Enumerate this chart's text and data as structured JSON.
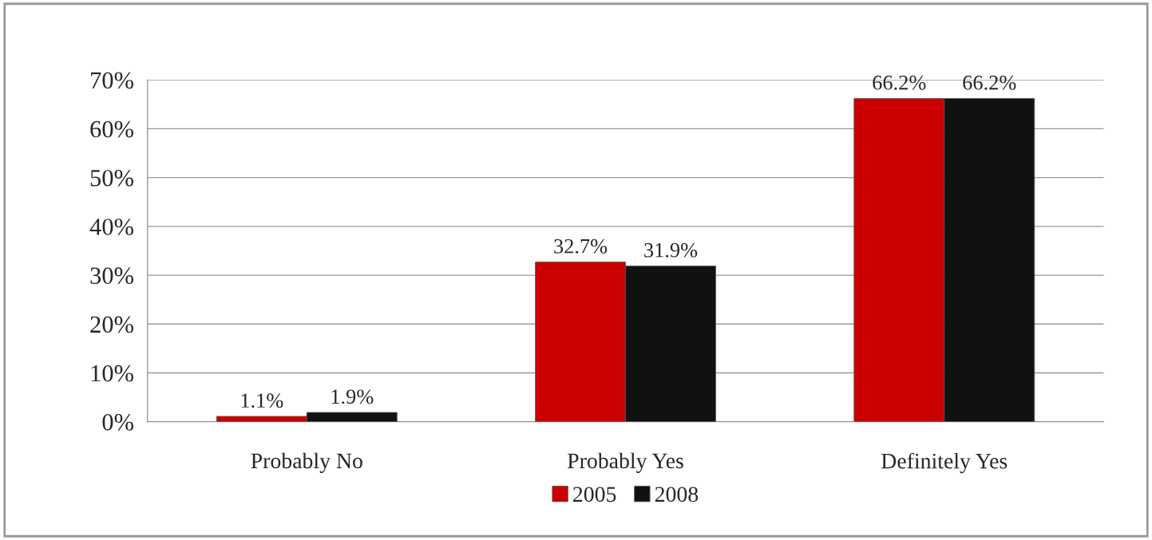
{
  "chart_data": {
    "type": "bar",
    "categories": [
      "Probably No",
      "Probably Yes",
      "Definitely Yes"
    ],
    "series": [
      {
        "name": "2005",
        "color": "#cc0000",
        "values": [
          1.1,
          32.7,
          66.2
        ],
        "value_labels": [
          "1.1%",
          "32.7%",
          "66.2%"
        ]
      },
      {
        "name": "2008",
        "color": "#111111",
        "values": [
          1.9,
          31.9,
          66.2
        ],
        "value_labels": [
          "1.9%",
          "31.9%",
          "66.2%"
        ]
      }
    ],
    "ylim": [
      0,
      70
    ],
    "yticks": [
      {
        "value": 0,
        "label": "0%"
      },
      {
        "value": 10,
        "label": "10%"
      },
      {
        "value": 20,
        "label": "20%"
      },
      {
        "value": 30,
        "label": "30%"
      },
      {
        "value": 40,
        "label": "40%"
      },
      {
        "value": 50,
        "label": "50%"
      },
      {
        "value": 60,
        "label": "60%"
      },
      {
        "value": 70,
        "label": "70%"
      }
    ],
    "grid": "y",
    "legend": "bottom"
  }
}
